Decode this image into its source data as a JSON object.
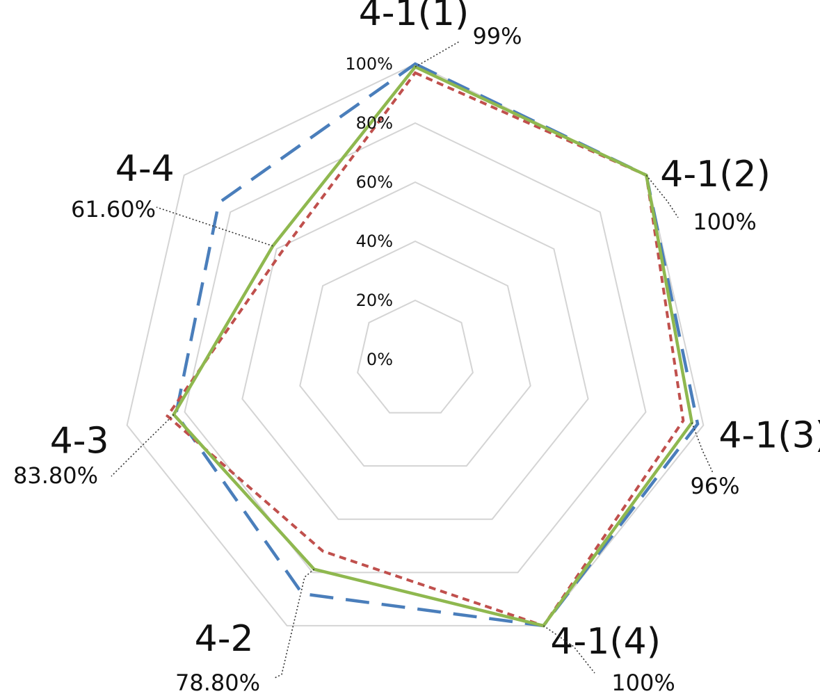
{
  "chart_data": {
    "type": "radar",
    "categories": [
      "4-1(1)",
      "4-1(2)",
      "4-1(3)",
      "4-1(4)",
      "4-2",
      "4-3",
      "4-4"
    ],
    "series": [
      {
        "values": [
          100,
          100,
          98,
          100,
          88,
          83,
          85
        ],
        "color": "#4a7ebb",
        "style": "long-dash"
      },
      {
        "values": [
          97,
          100,
          93,
          100,
          72,
          86,
          58
        ],
        "color": "#c0504d",
        "style": "short-dash"
      },
      {
        "values": [
          99,
          100,
          96,
          100,
          78.8,
          83.8,
          61.6
        ],
        "color": "#8fb84f",
        "style": "solid"
      }
    ],
    "r_ticks": [
      "0%",
      "20%",
      "40%",
      "60%",
      "80%",
      "100%"
    ],
    "r_range": [
      0,
      100
    ],
    "data_labels": [
      "99%",
      "100%",
      "96%",
      "100%",
      "78.80%",
      "83.80%",
      "61.60%"
    ],
    "grid": true,
    "legend": "none"
  }
}
